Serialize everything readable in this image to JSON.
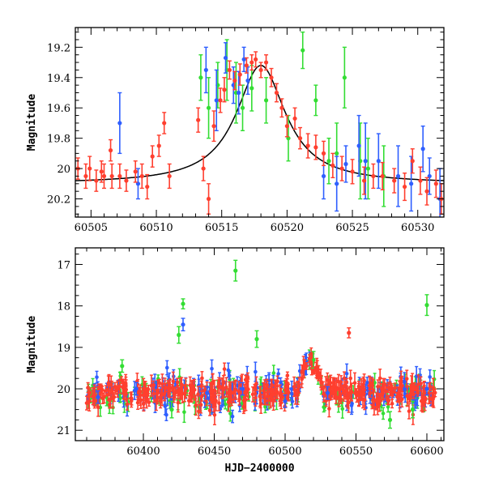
{
  "chart_data": [
    {
      "type": "scatter",
      "panel": "top",
      "title": "",
      "xlabel": "",
      "ylabel": "Magnitude",
      "xlim": [
        60503.8,
        60532
      ],
      "ylim": [
        20.32,
        19.07
      ],
      "y_inverted": true,
      "xticks": [
        60505,
        60510,
        60515,
        60520,
        60525,
        60530
      ],
      "yticks": [
        19.2,
        19.4,
        19.6,
        19.8,
        20,
        20.2
      ],
      "ytick_labels": [
        "19.2",
        "19.4",
        "19.6",
        "19.8",
        "20",
        "20.2"
      ],
      "model_curve": {
        "type": "lorentzian",
        "peak_x": 60518.0,
        "peak_mag": 19.32,
        "baseline_mag": 20.1,
        "width_days": 2.3,
        "color": "#000000"
      },
      "series": [
        {
          "color": "#ff3f2f",
          "points": [
            [
              60504.0,
              20.0,
              0.07
            ],
            [
              60504.6,
              20.05,
              0.08
            ],
            [
              60504.9,
              20.0,
              0.08
            ],
            [
              60505.4,
              20.08,
              0.07
            ],
            [
              60505.8,
              20.02,
              0.07
            ],
            [
              60506.0,
              20.05,
              0.08
            ],
            [
              60506.5,
              19.88,
              0.07
            ],
            [
              60506.6,
              20.05,
              0.08
            ],
            [
              60507.2,
              20.05,
              0.08
            ],
            [
              60507.7,
              20.08,
              0.07
            ],
            [
              60508.4,
              20.02,
              0.07
            ],
            [
              60508.9,
              20.05,
              0.08
            ],
            [
              60509.3,
              20.12,
              0.08
            ],
            [
              60509.7,
              19.92,
              0.07
            ],
            [
              60510.2,
              19.85,
              0.07
            ],
            [
              60510.6,
              19.7,
              0.07
            ],
            [
              60511.0,
              20.05,
              0.08
            ],
            [
              60513.2,
              19.68,
              0.08
            ],
            [
              60513.6,
              20.0,
              0.08
            ],
            [
              60514.0,
              20.2,
              0.1
            ],
            [
              60514.4,
              19.72,
              0.1
            ],
            [
              60514.9,
              19.55,
              0.08
            ],
            [
              60515.2,
              19.48,
              0.08
            ],
            [
              60515.6,
              19.35,
              0.06
            ],
            [
              60516.0,
              19.42,
              0.06
            ],
            [
              60516.4,
              19.38,
              0.07
            ],
            [
              60516.9,
              19.32,
              0.05
            ],
            [
              60517.3,
              19.3,
              0.05
            ],
            [
              60517.6,
              19.28,
              0.05
            ],
            [
              60518.0,
              19.35,
              0.05
            ],
            [
              60518.4,
              19.3,
              0.05
            ],
            [
              60518.8,
              19.4,
              0.06
            ],
            [
              60519.2,
              19.5,
              0.06
            ],
            [
              60519.6,
              19.6,
              0.06
            ],
            [
              60520.0,
              19.72,
              0.07
            ],
            [
              60520.6,
              19.67,
              0.07
            ],
            [
              60521.0,
              19.8,
              0.07
            ],
            [
              60521.6,
              19.85,
              0.08
            ],
            [
              60522.2,
              19.86,
              0.08
            ],
            [
              60522.8,
              19.9,
              0.08
            ],
            [
              60523.5,
              19.98,
              0.08
            ],
            [
              60524.2,
              20.0,
              0.08
            ],
            [
              60525.0,
              20.02,
              0.08
            ],
            [
              60525.9,
              20.08,
              0.09
            ],
            [
              60526.6,
              20.05,
              0.08
            ],
            [
              60527.3,
              20.05,
              0.09
            ],
            [
              60528.2,
              20.08,
              0.08
            ],
            [
              60529.0,
              20.12,
              0.09
            ],
            [
              60529.6,
              19.95,
              0.08
            ],
            [
              60530.2,
              20.08,
              0.09
            ],
            [
              60530.7,
              20.15,
              0.09
            ],
            [
              60531.4,
              20.1,
              0.09
            ],
            [
              60531.8,
              20.2,
              0.1
            ]
          ]
        },
        {
          "color": "#2f5fff",
          "points": [
            [
              60507.2,
              19.7,
              0.2
            ],
            [
              60508.6,
              20.1,
              0.1
            ],
            [
              60513.8,
              19.35,
              0.15
            ],
            [
              60514.6,
              19.55,
              0.2
            ],
            [
              60515.3,
              19.27,
              0.1
            ],
            [
              60515.9,
              19.45,
              0.12
            ],
            [
              60516.3,
              19.5,
              0.14
            ],
            [
              60516.7,
              19.28,
              0.08
            ],
            [
              60517.0,
              19.42,
              0.09
            ],
            [
              60522.8,
              20.05,
              0.15
            ],
            [
              60523.8,
              20.1,
              0.18
            ],
            [
              60524.5,
              19.97,
              0.12
            ],
            [
              60525.5,
              19.85,
              0.2
            ],
            [
              60526.0,
              19.95,
              0.25
            ],
            [
              60527.0,
              19.95,
              0.18
            ],
            [
              60528.5,
              20.05,
              0.2
            ],
            [
              60529.5,
              20.1,
              0.18
            ],
            [
              60530.4,
              19.87,
              0.15
            ],
            [
              60530.9,
              20.05,
              0.12
            ],
            [
              60531.7,
              20.2,
              0.2
            ]
          ]
        },
        {
          "color": "#33dd33",
          "points": [
            [
              60513.4,
              19.4,
              0.15
            ],
            [
              60514.0,
              19.6,
              0.2
            ],
            [
              60514.7,
              19.45,
              0.15
            ],
            [
              60515.4,
              19.35,
              0.2
            ],
            [
              60516.1,
              19.5,
              0.2
            ],
            [
              60516.6,
              19.6,
              0.15
            ],
            [
              60517.3,
              19.47,
              0.15
            ],
            [
              60518.4,
              19.55,
              0.15
            ],
            [
              60520.1,
              19.8,
              0.15
            ],
            [
              60521.2,
              19.22,
              0.12
            ],
            [
              60522.2,
              19.55,
              0.1
            ],
            [
              60523.2,
              19.95,
              0.15
            ],
            [
              60523.8,
              19.9,
              0.2
            ],
            [
              60524.4,
              19.4,
              0.2
            ],
            [
              60525.6,
              19.95,
              0.25
            ],
            [
              60526.2,
              20.0,
              0.2
            ],
            [
              60527.4,
              20.05,
              0.2
            ]
          ]
        }
      ]
    },
    {
      "type": "scatter",
      "panel": "bottom",
      "title": "",
      "xlabel": "HJD−2400000",
      "ylabel": "Magnitude",
      "xlim": [
        60352,
        60612
      ],
      "ylim": [
        21.25,
        16.6
      ],
      "y_inverted": true,
      "xticks": [
        60400,
        60450,
        60500,
        60550,
        60600
      ],
      "yticks": [
        17,
        18,
        19,
        20,
        21
      ],
      "ytick_labels": [
        "17",
        "18",
        "19",
        "20",
        "21"
      ],
      "baseline_mag": 20.1,
      "scatter_sigma": 0.2,
      "bump": {
        "peak_x": 60518,
        "peak_mag": 19.32
      },
      "series": [
        {
          "color": "#ff3f2f",
          "points": [
            [
              60362,
              20.1,
              0.1
            ],
            [
              60380,
              19.95,
              0.1
            ],
            [
              60400,
              20.15,
              0.1
            ],
            [
              60430,
              20.0,
              0.1
            ],
            [
              60460,
              20.1,
              0.1
            ],
            [
              60490,
              20.05,
              0.1
            ],
            [
              60515,
              19.45,
              0.08
            ],
            [
              60518,
              19.35,
              0.08
            ],
            [
              60521,
              19.55,
              0.08
            ],
            [
              60545,
              18.65,
              0.12
            ],
            [
              60560,
              20.1,
              0.1
            ],
            [
              60590,
              20.0,
              0.1
            ]
          ]
        },
        {
          "color": "#2f5fff",
          "points": [
            [
              60368,
              20.2,
              0.15
            ],
            [
              60395,
              20.0,
              0.15
            ],
            [
              60428,
              18.45,
              0.15
            ],
            [
              60445,
              20.1,
              0.15
            ],
            [
              60470,
              20.0,
              0.15
            ],
            [
              60500,
              20.3,
              0.15
            ],
            [
              60530,
              20.1,
              0.15
            ],
            [
              60560,
              20.2,
              0.15
            ],
            [
              60600,
              20.0,
              0.15
            ]
          ]
        },
        {
          "color": "#33dd33",
          "points": [
            [
              60385,
              19.45,
              0.15
            ],
            [
              60425,
              18.7,
              0.2
            ],
            [
              60428,
              17.95,
              0.12
            ],
            [
              60465,
              17.15,
              0.25
            ],
            [
              60480,
              18.8,
              0.2
            ],
            [
              60520,
              19.3,
              0.2
            ],
            [
              60574,
              20.75,
              0.2
            ],
            [
              60600,
              17.98,
              0.25
            ],
            [
              60420,
              20.5,
              0.2
            ],
            [
              60590,
              20.5,
              0.2
            ]
          ]
        }
      ]
    }
  ]
}
